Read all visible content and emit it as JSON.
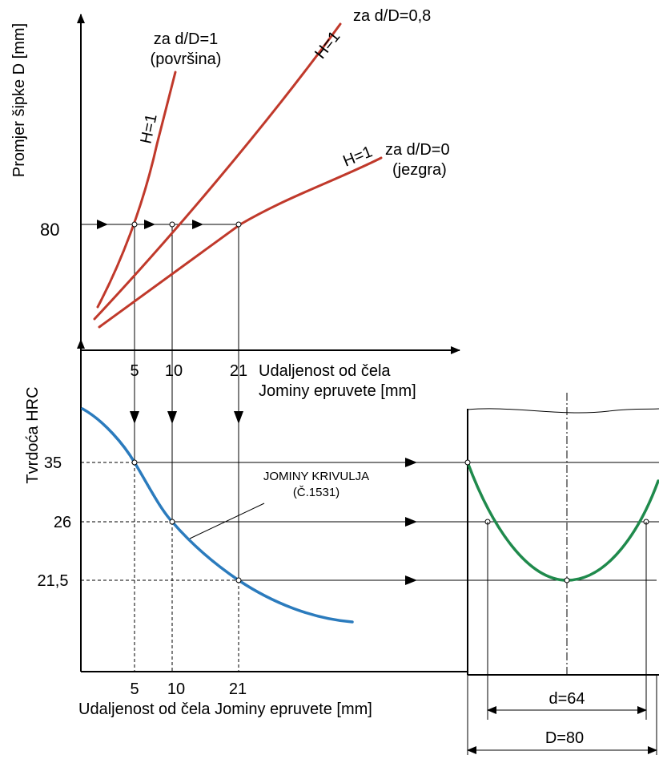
{
  "top_chart": {
    "ylabel": "Promjer šipke D [mm]",
    "xlabel_line1": "Udaljenost od čela",
    "xlabel_line2": "Jominy epruvete [mm]",
    "y_tick": "80",
    "x_ticks": [
      "5",
      "10",
      "21"
    ],
    "curves": [
      {
        "label_line1": "za d/D=1",
        "label_line2": "(površina)",
        "h_label": "H=1"
      },
      {
        "label_line1": "za d/D=0,8",
        "h_label": "H=1"
      },
      {
        "label_line1": "za d/D=0",
        "label_line2": "(jezgra)",
        "h_label": "H=1"
      }
    ]
  },
  "bottom_chart": {
    "ylabel": "Tvrdoća HRC",
    "xlabel": "Udaljenost od čela Jominy epruvete [mm]",
    "y_ticks": [
      "35",
      "26",
      "21,5"
    ],
    "x_ticks": [
      "5",
      "10",
      "21"
    ],
    "curve_label_line1": "JOMINY KRIVULJA",
    "curve_label_line2": "(Č.1531)"
  },
  "bar_section": {
    "inner_dim": "d=64",
    "outer_dim": "D=80"
  },
  "colors": {
    "hardenability_curves": "#c0392b",
    "jominy_curve": "#2b7bbd",
    "hardness_profile": "#1f8a4c"
  }
}
